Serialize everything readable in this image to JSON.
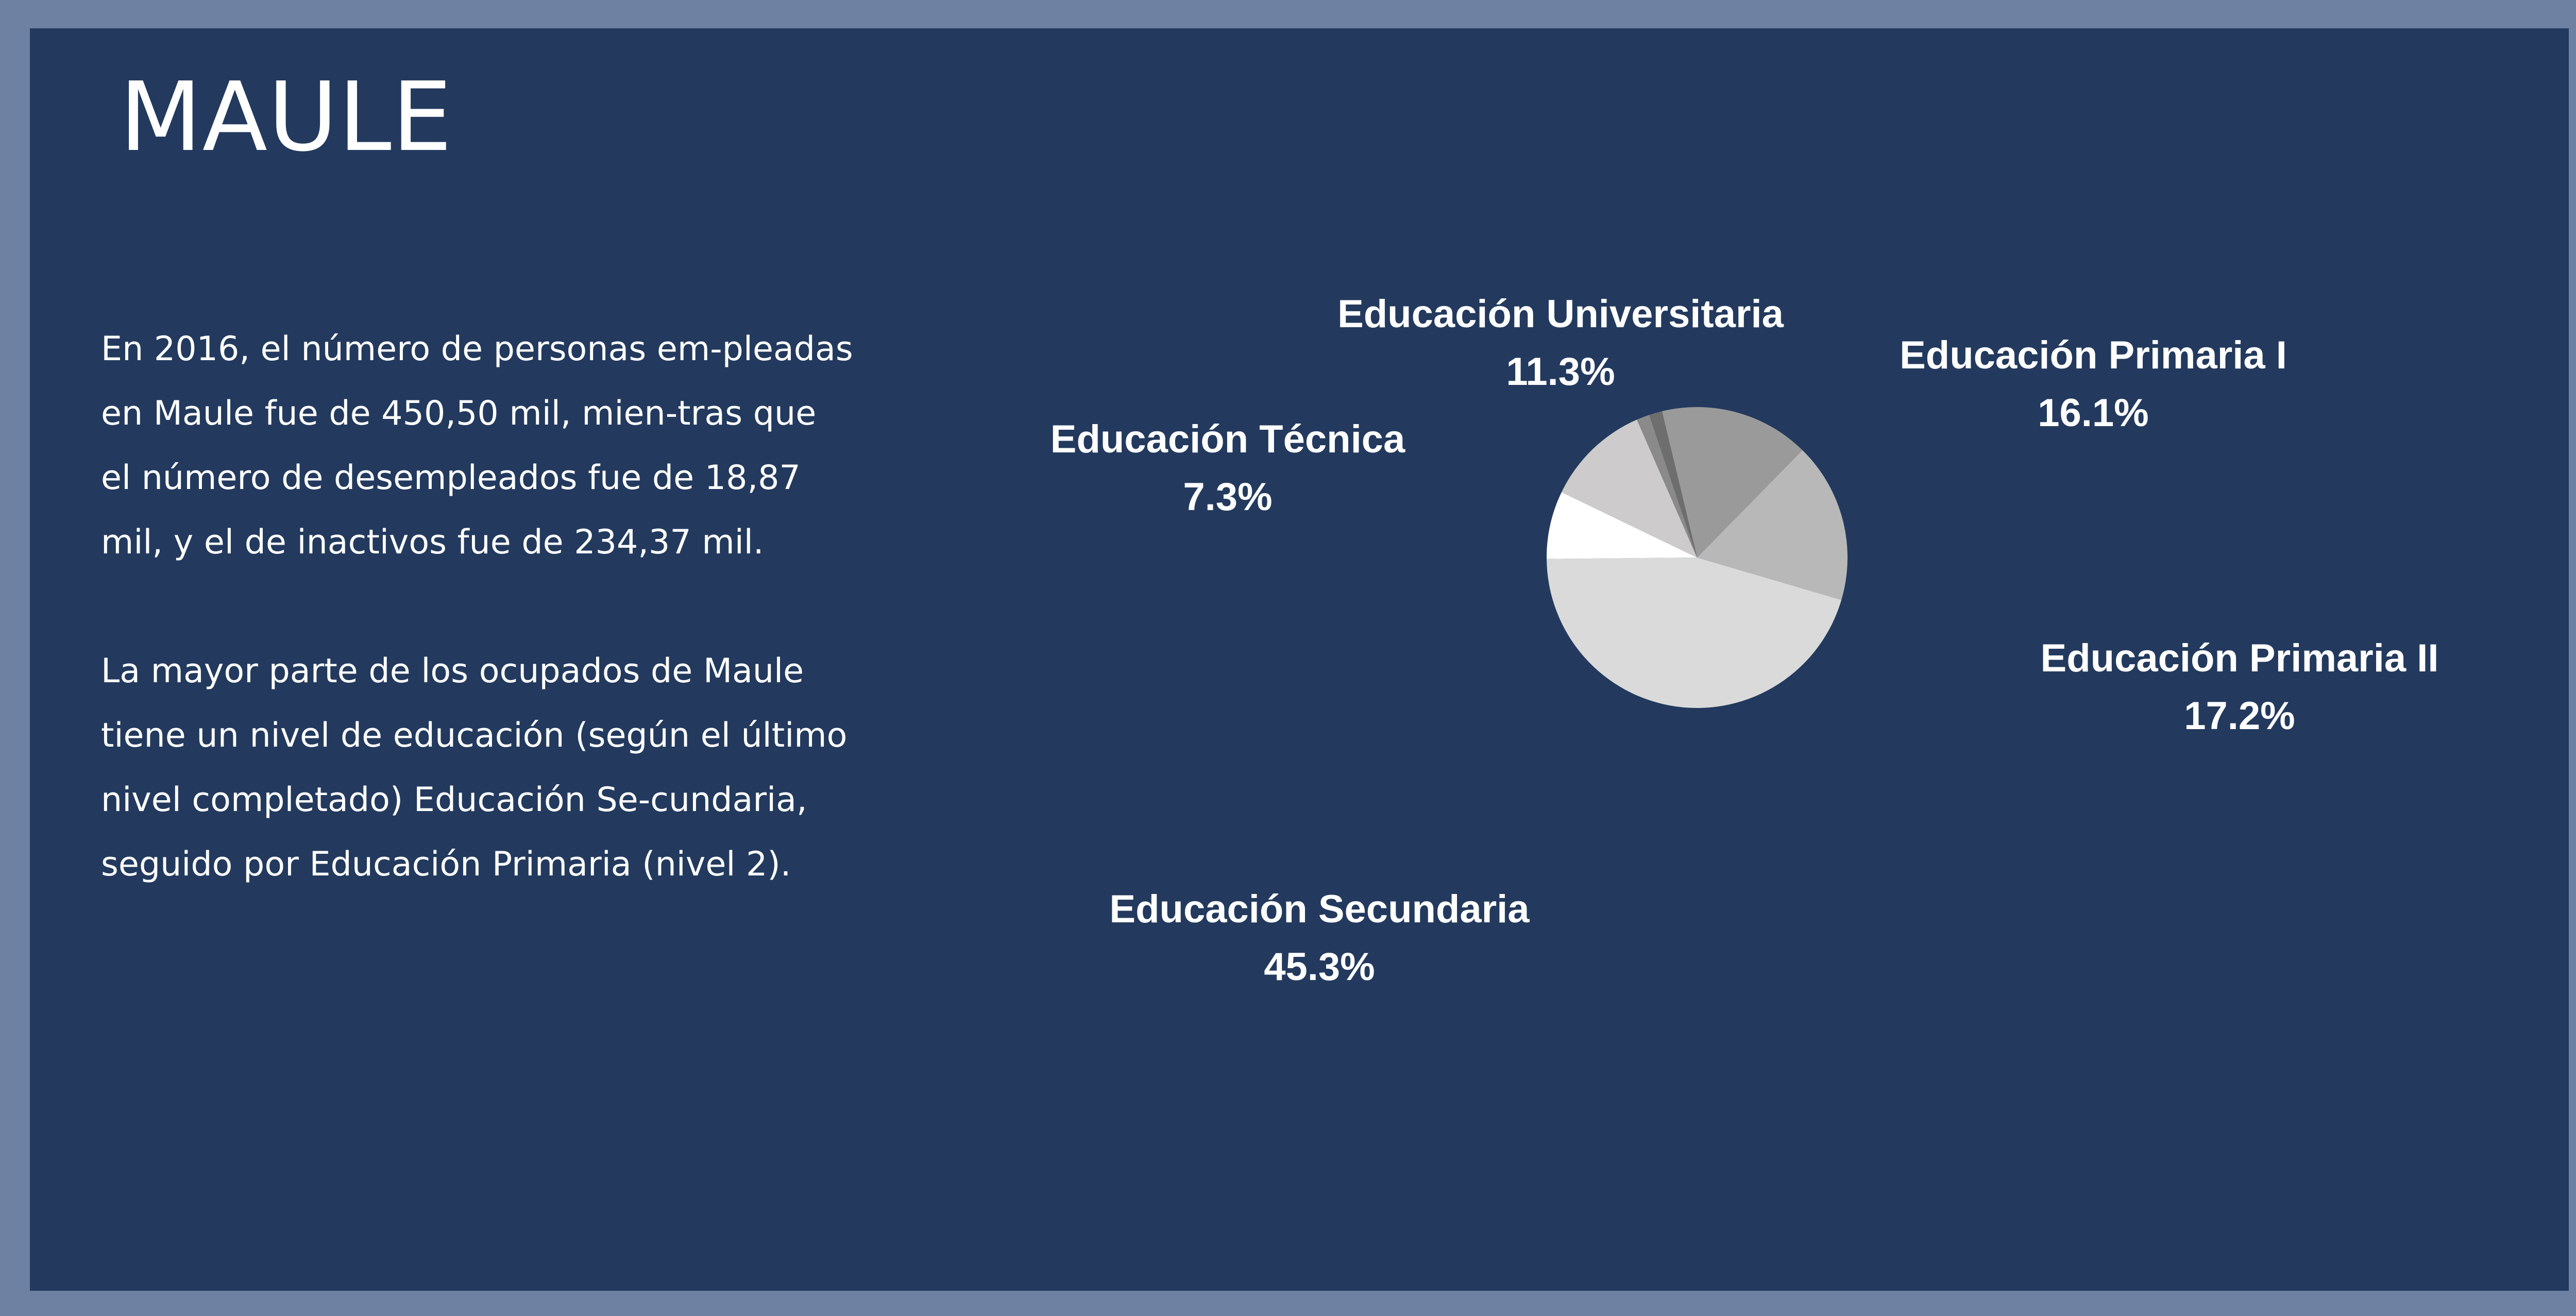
{
  "page": {
    "title": "MAULE",
    "paragraphs": [
      "En 2016, el número de personas em-pleadas en Maule fue de 450,50 mil, mien-tras que el número de desempleados fue de 18,87 mil, y el de inactivos fue de 234,37 mil.",
      "La mayor parte de los ocupados de Maule tiene un nivel de educación (según el último nivel completado) Educación Se-cundaria, seguido por Educación Primaria (nivel 2)."
    ]
  },
  "colors": {
    "outer_frame": "#6e81a3",
    "panel_background": "#233a5e",
    "text": "#ffffff"
  },
  "chart_data": {
    "type": "pie",
    "title": "",
    "slices": [
      {
        "label": "Educación Primaria I",
        "value": 16.1,
        "display": "16.1%",
        "color": "#9a9a9a"
      },
      {
        "label": "Educación Primaria II",
        "value": 17.2,
        "display": "17.2%",
        "color": "#b8b8b8"
      },
      {
        "label": "Educación Secundaria",
        "value": 45.3,
        "display": "45.3%",
        "color": "#dadada"
      },
      {
        "label": "Educación Técnica",
        "value": 7.3,
        "display": "7.3%",
        "color": "#ffffff"
      },
      {
        "label": "Educación Universitaria",
        "value": 11.3,
        "display": "11.3%",
        "color": "#cdcbcb"
      },
      {
        "label": "",
        "value": 1.4,
        "display": "",
        "color": "#8a8a8a"
      },
      {
        "label": "",
        "value": 1.4,
        "display": "",
        "color": "#6e6e6e"
      }
    ],
    "legend": "none"
  }
}
